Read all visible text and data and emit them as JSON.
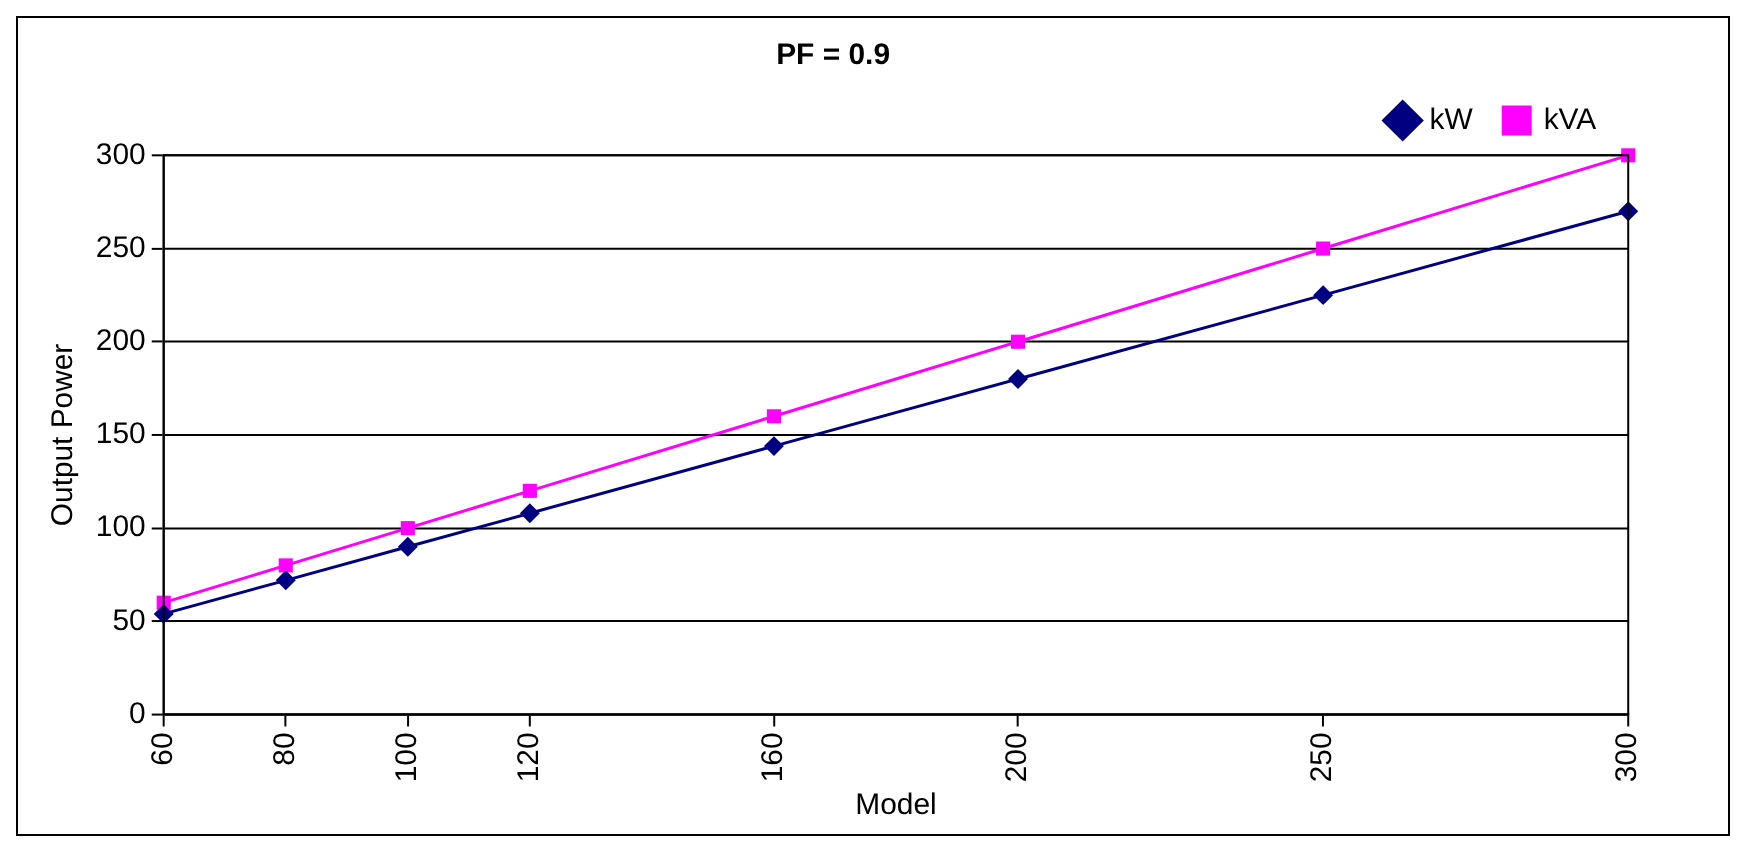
{
  "chart_data": {
    "type": "line",
    "title": "PF = 0.9",
    "xlabel": "Model",
    "ylabel": "Output Power",
    "x": [
      60,
      80,
      100,
      120,
      160,
      200,
      250,
      300
    ],
    "series": [
      {
        "name": "kW",
        "color": "#000080",
        "marker": "diamond",
        "values": [
          54,
          72,
          90,
          108,
          144,
          180,
          225,
          270
        ]
      },
      {
        "name": "kVA",
        "color": "#ff00ff",
        "marker": "square",
        "values": [
          60,
          80,
          100,
          120,
          160,
          200,
          250,
          300
        ]
      }
    ],
    "xlim": [
      60,
      300
    ],
    "xticks": [
      60,
      80,
      100,
      120,
      160,
      200,
      250,
      300
    ],
    "ylim": [
      0,
      300
    ],
    "yticks": [
      0,
      50,
      100,
      150,
      200,
      250,
      300
    ],
    "grid": "y",
    "legend": "top right",
    "line_style": "solid"
  }
}
